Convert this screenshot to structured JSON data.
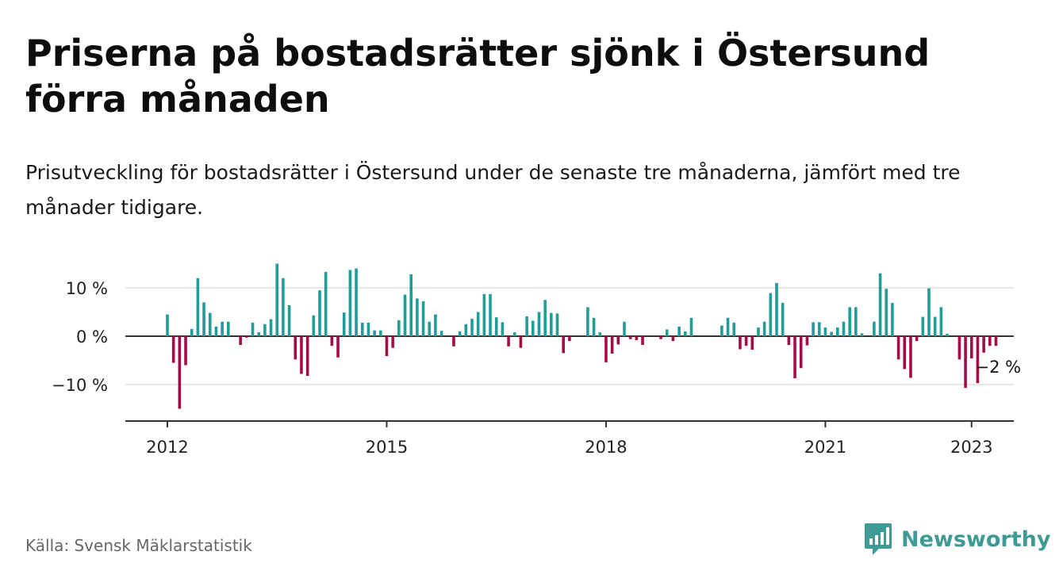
{
  "header": {
    "title": "Priserna på bostadsrätter sjönk i Östersund förra månaden",
    "subtitle": "Prisutveckling för bostadsrätter i Östersund under de senaste tre månaderna, jämfört med tre månader tidigare."
  },
  "footer": {
    "source": "Källa: Svensk Mäklarstatistik",
    "brand": "Newsworthy",
    "brand_icon": "newsworthy-logo-icon"
  },
  "colors": {
    "positive": "#1f9e97",
    "negative": "#a30d47",
    "axis": "#333333",
    "grid": "#dddddd",
    "brand": "#3d9a95"
  },
  "chart_data": {
    "type": "bar",
    "title": "",
    "xlabel": "",
    "ylabel": "",
    "x_ticks": [
      "2012",
      "2015",
      "2018",
      "2021",
      "2023"
    ],
    "y_ticks": [
      "10 %",
      "0 %",
      "−10 %"
    ],
    "ylim": [
      -17,
      11
    ],
    "grid": true,
    "x_start": "2012-01",
    "x_end": "2023-02",
    "annotation": "−2 %",
    "series": [
      {
        "values": [
          4.5,
          -5.5,
          -15,
          -6,
          1.5,
          12,
          7,
          4.8,
          2,
          3,
          3,
          0,
          -1.8,
          -0.3,
          2.8,
          0.8,
          2.5,
          3.5,
          15,
          12,
          6.4,
          -4.8,
          -7.8,
          -8.2,
          4.3,
          9.5,
          13.3,
          -2,
          -4.4,
          4.9,
          13.7,
          14,
          2.8,
          2.8,
          1.2,
          1.2,
          -4.1,
          -2.4,
          3.3,
          8.6,
          12.8,
          7.8,
          7.2,
          3,
          4.5,
          1.1,
          0,
          -2.1,
          1,
          2.5,
          3.6,
          5,
          8.7,
          8.7,
          3.9,
          2.9,
          -2.1,
          0.8,
          -2.4,
          4.1,
          3.2,
          5,
          7.5,
          4.8,
          4.7,
          -3.5,
          -1,
          0,
          0,
          6,
          3.8,
          0.8,
          -5.4,
          -3.6,
          -1.7,
          3,
          -0.6,
          -0.8,
          -1.8,
          0,
          0,
          -0.6,
          1.4,
          -1,
          2,
          1,
          3.8,
          0,
          0,
          0,
          0,
          2.2,
          3.8,
          2.8,
          -2.7,
          -2,
          -2.8,
          1.8,
          3,
          8.9,
          11,
          6.9,
          -1.8,
          -8.7,
          -6.6,
          -1.9,
          2.9,
          2.9,
          1.8,
          0.9,
          1.8,
          3,
          6,
          6,
          0.6,
          0,
          3,
          13,
          9.8,
          6.9,
          -4.8,
          -6.8,
          -8.6,
          -1,
          4,
          9.9,
          4,
          6,
          0.5,
          0,
          -4.8,
          -10.7,
          -4.6,
          -9.7,
          -3.4,
          -2,
          -2
        ]
      }
    ]
  }
}
